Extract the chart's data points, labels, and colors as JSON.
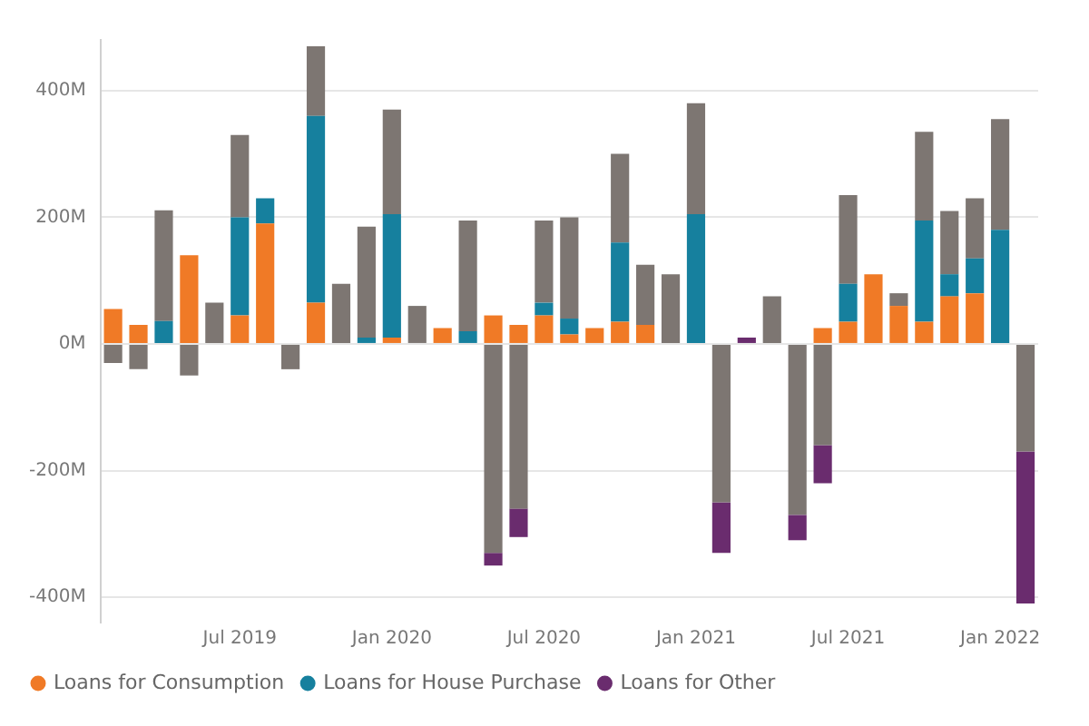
{
  "chart_data": {
    "type": "bar",
    "stacked": true,
    "categories": [
      null,
      null,
      null,
      null,
      null,
      "Jul 2019",
      null,
      null,
      null,
      null,
      null,
      "Jan 2020",
      null,
      null,
      null,
      null,
      null,
      "Jul 2020",
      null,
      null,
      null,
      null,
      null,
      "Jan 2021",
      null,
      null,
      null,
      null,
      null,
      "Jul 2021",
      null,
      null,
      null,
      null,
      null,
      "Jan 2022",
      null
    ],
    "series": [
      {
        "name": "Loans for Consumption",
        "color": "#f07a26",
        "values": [
          55,
          30,
          null,
          140,
          null,
          45,
          190,
          null,
          65,
          null,
          null,
          10,
          null,
          25,
          null,
          45,
          30,
          45,
          15,
          25,
          35,
          30,
          null,
          null,
          null,
          null,
          null,
          null,
          25,
          35,
          110,
          60,
          35,
          75,
          80,
          null,
          null
        ]
      },
      {
        "name": "Loans for House Purchase",
        "color": "#16809e",
        "values": [
          null,
          null,
          36,
          null,
          null,
          155,
          40,
          null,
          295,
          null,
          10,
          195,
          null,
          null,
          20,
          null,
          null,
          20,
          25,
          null,
          125,
          null,
          null,
          205,
          null,
          null,
          null,
          null,
          null,
          60,
          null,
          null,
          160,
          35,
          55,
          180,
          null
        ]
      },
      {
        "color": "#7d7672",
        "values": [
          -30,
          -40,
          175,
          -50,
          65,
          130,
          null,
          -40,
          110,
          95,
          175,
          165,
          60,
          null,
          175,
          -330,
          -260,
          130,
          160,
          null,
          140,
          95,
          110,
          175,
          -250,
          null,
          75,
          -270,
          -160,
          140,
          null,
          20,
          140,
          100,
          95,
          175,
          -170
        ]
      },
      {
        "name": "Loans for Other",
        "color": "#6a2c6e",
        "values": [
          null,
          null,
          null,
          null,
          null,
          null,
          null,
          null,
          null,
          null,
          null,
          null,
          null,
          null,
          null,
          -20,
          -45,
          null,
          null,
          null,
          null,
          null,
          null,
          null,
          -80,
          10,
          null,
          -40,
          -60,
          null,
          null,
          null,
          null,
          null,
          null,
          null,
          -240
        ]
      }
    ],
    "ylim": [
      -440,
      480
    ],
    "yticks": [
      {
        "value": -400,
        "label": "-400M"
      },
      {
        "value": -200,
        "label": "-200M"
      },
      {
        "value": 0,
        "label": "0M"
      },
      {
        "value": 200,
        "label": "200M"
      },
      {
        "value": 400,
        "label": "400M"
      }
    ],
    "grid": "y",
    "legend": "bottom"
  }
}
